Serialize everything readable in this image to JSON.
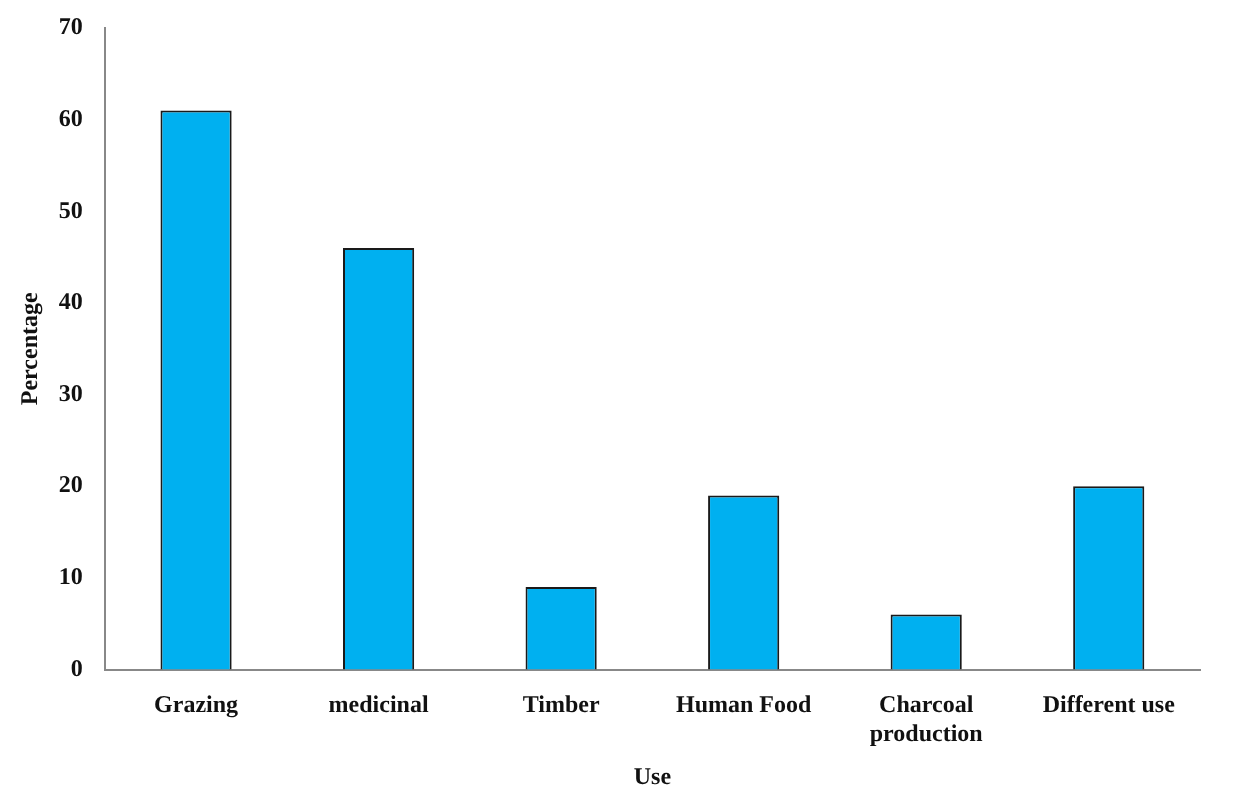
{
  "chart_data": {
    "type": "bar",
    "xlabel": "Use",
    "ylabel": "Percentage",
    "categories": [
      "Grazing",
      "medicinal",
      "Timber",
      "Human Food",
      "Charcoal production",
      "Different use"
    ],
    "values": [
      61,
      46,
      9,
      19,
      6,
      20
    ],
    "color": "#00b0f0",
    "ylim": [
      0,
      70
    ],
    "yticks": [
      0,
      10,
      20,
      30,
      40,
      50,
      60,
      70
    ],
    "grid": false,
    "legend": false
  }
}
